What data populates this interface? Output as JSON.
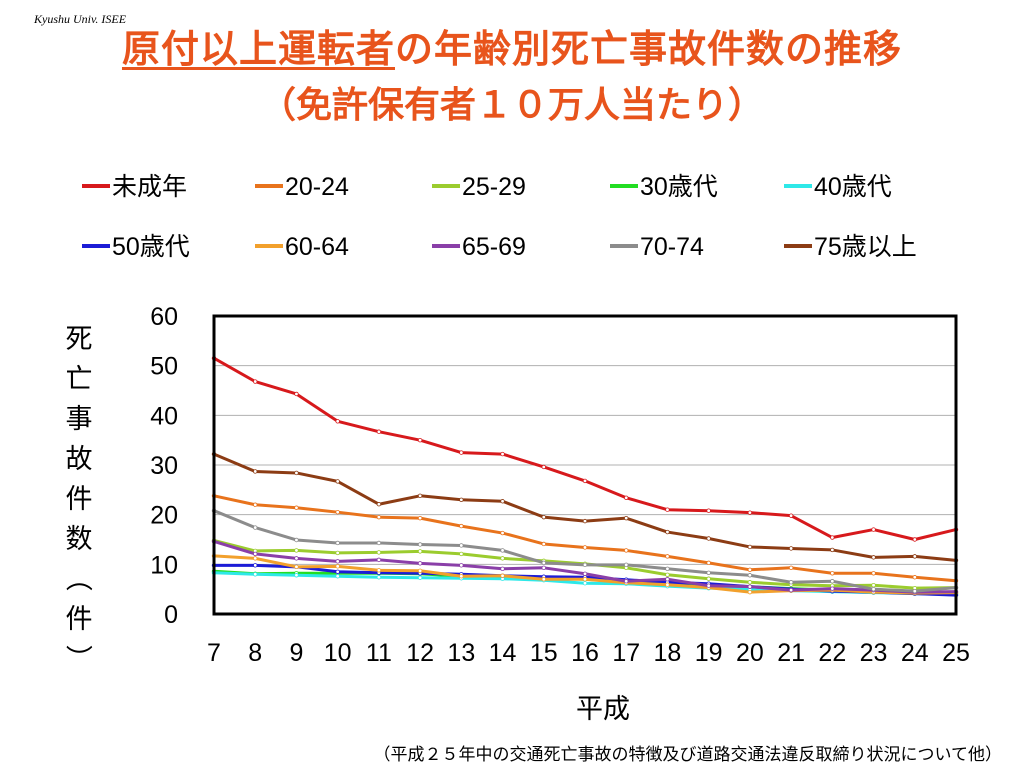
{
  "header": {
    "credit": "Kyushu Univ. ISEE",
    "title_underlined": "原付以上運転者",
    "title_rest": "の年齢別死亡事故件数の推移",
    "subtitle": "（免許保有者１０万人当たり）"
  },
  "footer": {
    "source": "（平成２５年中の交通死亡事故の特徴及び道路交通法違反取締り状況について他）"
  },
  "chart_data": {
    "type": "line",
    "xlabel": "平成",
    "ylabel": "死亡事故件数（件）",
    "ylim": [
      0,
      60
    ],
    "yticks": [
      0,
      10,
      20,
      30,
      40,
      50,
      60
    ],
    "grid": "horizontal",
    "legend_placement": "top",
    "x": [
      7,
      8,
      9,
      10,
      11,
      12,
      13,
      14,
      15,
      16,
      17,
      18,
      19,
      20,
      21,
      22,
      23,
      24,
      25
    ],
    "series": [
      {
        "name": "未成年",
        "color": "#d7191c",
        "values": [
          51.5,
          46.8,
          44.3,
          38.8,
          36.7,
          35.0,
          32.5,
          32.2,
          29.6,
          26.8,
          23.4,
          21.0,
          20.8,
          20.4,
          19.8,
          15.4,
          17.0,
          15.0,
          17.0
        ]
      },
      {
        "name": "20-24",
        "color": "#e8731c",
        "values": [
          23.8,
          22.0,
          21.4,
          20.5,
          19.5,
          19.3,
          17.7,
          16.3,
          14.1,
          13.4,
          12.8,
          11.6,
          10.3,
          8.9,
          9.3,
          8.2,
          8.2,
          7.4,
          6.7
        ]
      },
      {
        "name": "25-29",
        "color": "#9bcc2e",
        "values": [
          14.8,
          12.7,
          12.8,
          12.3,
          12.4,
          12.6,
          12.1,
          11.2,
          10.7,
          10.1,
          9.3,
          7.9,
          7.1,
          6.4,
          5.9,
          5.7,
          5.8,
          5.2,
          5.3
        ]
      },
      {
        "name": "30歳代",
        "color": "#22dd22",
        "values": [
          8.6,
          8.1,
          8.2,
          8.2,
          8.2,
          8.1,
          7.6,
          7.5,
          7.3,
          7.0,
          6.5,
          6.2,
          5.8,
          5.5,
          5.1,
          4.8,
          4.6,
          4.3,
          4.2
        ]
      },
      {
        "name": "40歳代",
        "color": "#2ee8e8",
        "values": [
          8.3,
          8.0,
          7.8,
          7.6,
          7.4,
          7.3,
          7.2,
          7.1,
          6.8,
          6.2,
          6.1,
          5.6,
          5.2,
          5.0,
          4.7,
          4.5,
          4.3,
          4.1,
          3.9
        ]
      },
      {
        "name": "50歳代",
        "color": "#1c1cd6",
        "values": [
          9.8,
          9.8,
          9.5,
          8.5,
          8.3,
          8.2,
          8.0,
          7.7,
          7.5,
          7.4,
          6.9,
          6.4,
          6.1,
          5.5,
          5.0,
          4.6,
          4.4,
          4.1,
          3.8
        ]
      },
      {
        "name": "60-64",
        "color": "#f2a02c",
        "values": [
          11.7,
          11.2,
          9.5,
          9.6,
          8.8,
          8.7,
          7.6,
          7.7,
          7.0,
          7.0,
          6.3,
          5.9,
          5.3,
          4.4,
          4.7,
          4.8,
          4.4,
          4.2,
          4.3
        ]
      },
      {
        "name": "65-69",
        "color": "#8a3fa8",
        "values": [
          14.6,
          12.1,
          11.2,
          10.6,
          10.9,
          10.2,
          9.8,
          9.1,
          9.3,
          8.1,
          6.6,
          7.0,
          5.7,
          5.5,
          4.8,
          5.1,
          4.8,
          4.4,
          4.5
        ]
      },
      {
        "name": "70-74",
        "color": "#8c8c8c",
        "values": [
          20.8,
          17.4,
          14.9,
          14.3,
          14.3,
          14.0,
          13.8,
          12.8,
          10.3,
          9.9,
          9.9,
          9.1,
          8.3,
          7.8,
          6.4,
          6.6,
          5.0,
          4.6,
          5.3
        ]
      },
      {
        "name": "75歳以上",
        "color": "#8c3c14",
        "values": [
          32.2,
          28.7,
          28.4,
          26.7,
          22.1,
          23.8,
          23.0,
          22.7,
          19.5,
          18.7,
          19.3,
          16.5,
          15.2,
          13.5,
          13.2,
          12.9,
          11.4,
          11.6,
          10.8
        ]
      }
    ]
  }
}
